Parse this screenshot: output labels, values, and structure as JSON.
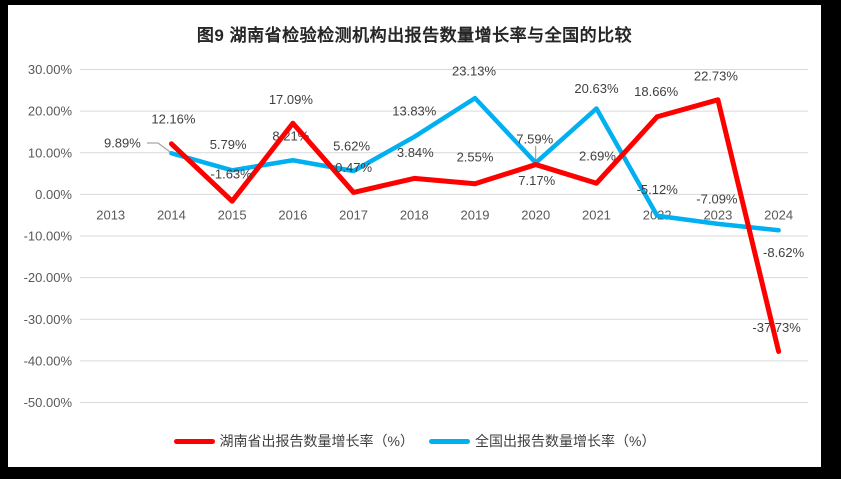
{
  "colors": {
    "hunan_series": "#FF0000",
    "national_series": "#00B0F0",
    "gridline": "#D9D9D9",
    "axis_label": "#595959",
    "data_label": "#404040",
    "title_text": "#262626",
    "leader_line": "#A6A6A6",
    "frame": "#000000",
    "background": "#FFFFFF"
  },
  "chart_data": {
    "type": "line",
    "title": "图9 湖南省检验检测机构出报告数量增长率与全国的比较",
    "categories": [
      "2013",
      "2014",
      "2015",
      "2016",
      "2017",
      "2018",
      "2019",
      "2020",
      "2021",
      "2022",
      "2023",
      "2024"
    ],
    "ylim": [
      -50,
      30
    ],
    "yticks": [
      30,
      20,
      10,
      0,
      -10,
      -20,
      -30,
      -40,
      -50
    ],
    "ytick_labels": [
      "30.00%",
      "20.00%",
      "10.00%",
      "0.00%",
      "-10.00%",
      "-20.00%",
      "-30.00%",
      "-40.00%",
      "-50.00%"
    ],
    "grid": true,
    "legend_position": "bottom",
    "series": [
      {
        "name": "湖南省出报告数量增长率（%）",
        "color": "#FF0000",
        "first_category": "2014",
        "values": [
          12.16,
          -1.63,
          17.09,
          0.47,
          3.84,
          2.55,
          7.17,
          2.69,
          18.66,
          22.73,
          -37.73
        ],
        "data_labels": [
          "12.16%",
          "-1.63%",
          "17.09%",
          "0.47%",
          "3.84%",
          "2.55%",
          "7.17%",
          "2.69%",
          "18.66%",
          "22.73%",
          "-37.73%"
        ]
      },
      {
        "name": "全国出报告数量增长率（%）",
        "color": "#00B0F0",
        "first_category": "2014",
        "values": [
          9.89,
          5.79,
          8.21,
          5.62,
          13.83,
          23.13,
          7.59,
          20.63,
          -5.12,
          -7.09,
          -8.62
        ],
        "data_labels": [
          "9.89%",
          "5.79%",
          "8.21%",
          "5.62%",
          "13.83%",
          "23.13%",
          "7.59%",
          "20.63%",
          "-5.12%",
          "-7.09%",
          "-8.62%"
        ]
      }
    ]
  }
}
